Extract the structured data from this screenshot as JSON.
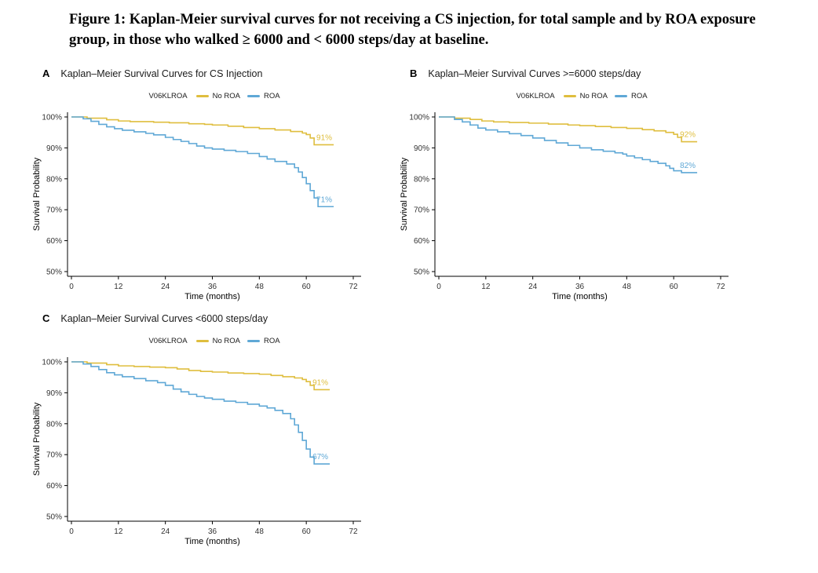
{
  "figure_title": "Figure 1: Kaplan-Meier survival curves for not receiving a CS injection, for total sample and by ROA exposure group, in those who walked ≥ 6000 and < 6000 steps/day at baseline.",
  "legend": {
    "title": "V06KLROA",
    "entries": [
      {
        "label": "No ROA",
        "color": "#DFBE3E"
      },
      {
        "label": "ROA",
        "color": "#5FA8D6"
      }
    ]
  },
  "axes": {
    "x": {
      "label": "Time (months)",
      "min": 0,
      "max": 72,
      "ticks": [
        0,
        12,
        24,
        36,
        48,
        60,
        72
      ],
      "tick_suffix": ""
    },
    "y": {
      "label": "Survival Probability",
      "min": 50,
      "max": 100,
      "ticks": [
        50,
        60,
        70,
        80,
        90,
        100
      ],
      "tick_suffix": "%"
    }
  },
  "chart_data": [
    {
      "type": "line",
      "subtype": "kaplan-meier-step",
      "panel_label": "A",
      "title": "Kaplan–Meier Survival Curves for CS Injection",
      "xlabel": "Time (months)",
      "ylabel": "Survival Probability",
      "xlim": [
        0,
        72
      ],
      "ylim": [
        50,
        100
      ],
      "legend_position": "top",
      "grid": false,
      "series": [
        {
          "name": "No ROA",
          "color": "#DFBE3E",
          "end_label": "91%",
          "points": [
            [
              0,
              100
            ],
            [
              4,
              99.6
            ],
            [
              9,
              99.1
            ],
            [
              12,
              98.7
            ],
            [
              15,
              98.5
            ],
            [
              21,
              98.3
            ],
            [
              25,
              98.1
            ],
            [
              30,
              97.8
            ],
            [
              34,
              97.6
            ],
            [
              36,
              97.4
            ],
            [
              40,
              97.0
            ],
            [
              44,
              96.6
            ],
            [
              48,
              96.2
            ],
            [
              52,
              95.8
            ],
            [
              56,
              95.3
            ],
            [
              59,
              94.8
            ],
            [
              60,
              94.3
            ],
            [
              61,
              93.2
            ],
            [
              62,
              91.0
            ],
            [
              67,
              91.0
            ]
          ]
        },
        {
          "name": "ROA",
          "color": "#5FA8D6",
          "end_label": "71%",
          "points": [
            [
              0,
              100
            ],
            [
              3,
              99.4
            ],
            [
              5,
              98.6
            ],
            [
              7,
              97.6
            ],
            [
              9,
              96.8
            ],
            [
              11,
              96.2
            ],
            [
              13,
              95.7
            ],
            [
              16,
              95.2
            ],
            [
              19,
              94.7
            ],
            [
              21,
              94.2
            ],
            [
              24,
              93.4
            ],
            [
              26,
              92.7
            ],
            [
              28,
              92.1
            ],
            [
              30,
              91.4
            ],
            [
              32,
              90.6
            ],
            [
              34,
              90.0
            ],
            [
              36,
              89.6
            ],
            [
              39,
              89.2
            ],
            [
              42,
              88.8
            ],
            [
              45,
              88.2
            ],
            [
              48,
              87.2
            ],
            [
              50,
              86.4
            ],
            [
              52,
              85.6
            ],
            [
              55,
              84.8
            ],
            [
              57,
              83.6
            ],
            [
              58,
              82.2
            ],
            [
              59,
              80.4
            ],
            [
              60,
              78.4
            ],
            [
              61,
              76.2
            ],
            [
              62,
              73.8
            ],
            [
              63,
              71.0
            ],
            [
              67,
              71.0
            ]
          ]
        }
      ]
    },
    {
      "type": "line",
      "subtype": "kaplan-meier-step",
      "panel_label": "B",
      "title": "Kaplan–Meier Survival Curves >=6000 steps/day",
      "xlabel": "Time (months)",
      "ylabel": "Survival Probability",
      "xlim": [
        0,
        72
      ],
      "ylim": [
        50,
        100
      ],
      "legend_position": "top",
      "grid": false,
      "series": [
        {
          "name": "No ROA",
          "color": "#DFBE3E",
          "end_label": "92%",
          "points": [
            [
              0,
              100
            ],
            [
              4,
              99.6
            ],
            [
              8,
              99.2
            ],
            [
              11,
              98.7
            ],
            [
              14,
              98.4
            ],
            [
              18,
              98.2
            ],
            [
              23,
              98.0
            ],
            [
              28,
              97.7
            ],
            [
              33,
              97.4
            ],
            [
              36,
              97.2
            ],
            [
              40,
              96.9
            ],
            [
              44,
              96.6
            ],
            [
              48,
              96.3
            ],
            [
              52,
              95.9
            ],
            [
              55,
              95.5
            ],
            [
              58,
              95.0
            ],
            [
              60,
              94.4
            ],
            [
              61,
              93.4
            ],
            [
              62,
              92.0
            ],
            [
              66,
              92.0
            ]
          ]
        },
        {
          "name": "ROA",
          "color": "#5FA8D6",
          "end_label": "82%",
          "points": [
            [
              0,
              100
            ],
            [
              4,
              99.2
            ],
            [
              6,
              98.4
            ],
            [
              8,
              97.4
            ],
            [
              10,
              96.4
            ],
            [
              12,
              95.8
            ],
            [
              15,
              95.2
            ],
            [
              18,
              94.6
            ],
            [
              21,
              94.0
            ],
            [
              24,
              93.2
            ],
            [
              27,
              92.4
            ],
            [
              30,
              91.6
            ],
            [
              33,
              90.8
            ],
            [
              36,
              90.0
            ],
            [
              39,
              89.4
            ],
            [
              42,
              88.9
            ],
            [
              45,
              88.4
            ],
            [
              47,
              88.0
            ],
            [
              48,
              87.4
            ],
            [
              50,
              86.8
            ],
            [
              52,
              86.2
            ],
            [
              54,
              85.6
            ],
            [
              56,
              85.0
            ],
            [
              58,
              84.2
            ],
            [
              59,
              83.4
            ],
            [
              60,
              82.6
            ],
            [
              62,
              82.0
            ],
            [
              66,
              82.0
            ]
          ]
        }
      ]
    },
    {
      "type": "line",
      "subtype": "kaplan-meier-step",
      "panel_label": "C",
      "title": "Kaplan–Meier Survival Curves <6000 steps/day",
      "xlabel": "Time (months)",
      "ylabel": "Survival Probability",
      "xlim": [
        0,
        72
      ],
      "ylim": [
        50,
        100
      ],
      "legend_position": "top",
      "grid": false,
      "series": [
        {
          "name": "No ROA",
          "color": "#DFBE3E",
          "end_label": "91%",
          "points": [
            [
              0,
              100
            ],
            [
              4,
              99.6
            ],
            [
              9,
              99.1
            ],
            [
              12,
              98.7
            ],
            [
              16,
              98.5
            ],
            [
              20,
              98.3
            ],
            [
              24,
              98.1
            ],
            [
              27,
              97.7
            ],
            [
              30,
              97.2
            ],
            [
              33,
              96.9
            ],
            [
              36,
              96.7
            ],
            [
              40,
              96.4
            ],
            [
              44,
              96.2
            ],
            [
              48,
              96.0
            ],
            [
              51,
              95.6
            ],
            [
              54,
              95.2
            ],
            [
              57,
              94.8
            ],
            [
              59,
              94.3
            ],
            [
              60,
              93.6
            ],
            [
              61,
              92.4
            ],
            [
              62,
              91.0
            ],
            [
              66,
              91.0
            ]
          ]
        },
        {
          "name": "ROA",
          "color": "#5FA8D6",
          "end_label": "67%",
          "points": [
            [
              0,
              100
            ],
            [
              3,
              99.3
            ],
            [
              5,
              98.5
            ],
            [
              7,
              97.5
            ],
            [
              9,
              96.5
            ],
            [
              11,
              95.8
            ],
            [
              13,
              95.2
            ],
            [
              16,
              94.6
            ],
            [
              19,
              93.9
            ],
            [
              22,
              93.3
            ],
            [
              24,
              92.4
            ],
            [
              26,
              91.2
            ],
            [
              28,
              90.3
            ],
            [
              30,
              89.5
            ],
            [
              32,
              88.8
            ],
            [
              34,
              88.3
            ],
            [
              36,
              87.9
            ],
            [
              39,
              87.3
            ],
            [
              42,
              86.9
            ],
            [
              45,
              86.3
            ],
            [
              48,
              85.7
            ],
            [
              50,
              85.1
            ],
            [
              52,
              84.3
            ],
            [
              54,
              83.3
            ],
            [
              56,
              81.6
            ],
            [
              57,
              79.6
            ],
            [
              58,
              77.2
            ],
            [
              59,
              74.6
            ],
            [
              60,
              71.8
            ],
            [
              61,
              69.2
            ],
            [
              62,
              67.0
            ],
            [
              66,
              67.0
            ]
          ]
        }
      ]
    }
  ]
}
